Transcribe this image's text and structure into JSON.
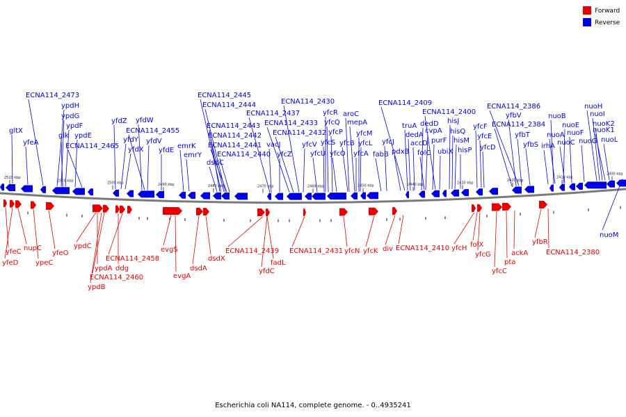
{
  "legend": {
    "forward_label": "Forward",
    "reverse_label": "Reverse",
    "forward_color": "#e60000",
    "reverse_color": "#0000e6"
  },
  "caption": "Escherichia coli NA114, complete genome. - 0..4935241",
  "ticks": [
    "2520 kbp",
    "2510 kbp",
    "2500 kbp",
    "2490 kbp",
    "2480 kbp",
    "2470 kbp",
    "2460 kbp",
    "2450 kbp",
    "2440 kbp",
    "2430 kbp",
    "2420 kbp",
    "2410 kbp",
    "2400 kbp"
  ],
  "reverse_genes": [
    "gltX",
    "yfeA",
    "ECNA114_2473",
    "ypdH",
    "ypdG",
    "ypdF",
    "glk",
    "ypdE",
    "ECNA114_2465",
    "yfdZ",
    "yfdY",
    "yfdX",
    "yfdW",
    "ECNA114_2455",
    "yfdV",
    "yfdE",
    "emrK",
    "emrY",
    "ECNA114_2445",
    "ECNA114_2444",
    "dsdC",
    "ECNA114_2443",
    "ECNA114_2442",
    "ECNA114_2441",
    "ECNA114_2440",
    "ECNA114_2437",
    "vacJ",
    "ECNA114_2433",
    "yfcZ",
    "ECNA114_2432",
    "ECNA114_2430",
    "yfcR",
    "yfcV",
    "yfcQ",
    "yfcU",
    "yfcP",
    "yfcS",
    "yfcO",
    "aroC",
    "yfcB",
    "mepA",
    "yfcM",
    "yfcL",
    "yfcA",
    "fabB",
    "yfcJ",
    "ECNA114_2409",
    "pdxB",
    "truA",
    "dedA",
    "accD",
    "dedD",
    "folC",
    "cvpA",
    "purF",
    "ubiX",
    "ECNA114_2400",
    "hisJ",
    "hisQ",
    "hisM",
    "hisP",
    "ECNA114_2386",
    "yfcF",
    "yfcE",
    "yfcD",
    "yfbV",
    "ECNA114_2384",
    "yfbT",
    "yfbS",
    "nuoB",
    "nuoA",
    "irhA",
    "nuoE",
    "nuoC",
    "nuoF",
    "nuoG",
    "nuoH",
    "nuoI",
    "nuoK2",
    "nuoK1",
    "nuoL",
    "nuoM"
  ],
  "forward_genes": [
    "yfeC",
    "yfeD",
    "nupC",
    "ypeC",
    "yfeO",
    "ypdC",
    "ypdA",
    "ypdB",
    "ECNA114_2460",
    "ddg",
    "ECNA114_2458",
    "evgS",
    "evgA",
    "dsdA",
    "dsdX",
    "ECNA114_2439",
    "yfdC",
    "fadL",
    "ECNA114_2431",
    "yfcN",
    "yfcK",
    "div",
    "ECNA114_2410",
    "yfcH",
    "folX",
    "yfcG",
    "yfcC",
    "pta",
    "ackA",
    "yfbR",
    "ECNA114_2380"
  ]
}
